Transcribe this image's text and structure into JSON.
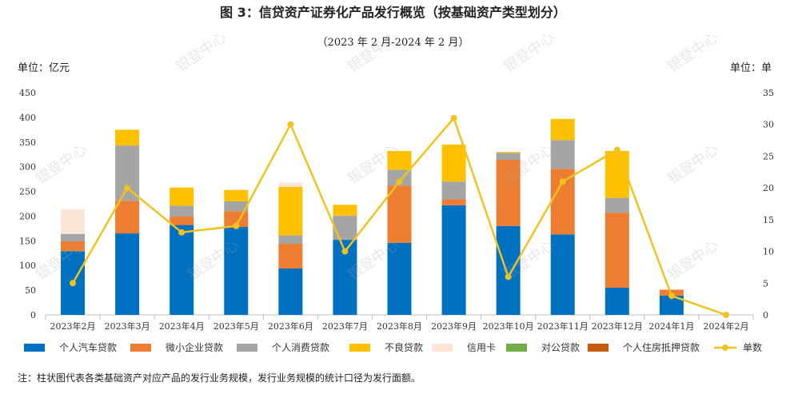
{
  "title": "图 3：信贷资产证券化产品发行概览（按基础资产类型划分）",
  "subtitle": "（2023 年 2 月-2024 年 2 月）",
  "unit_left": "单位：亿元",
  "unit_right": "单位：单",
  "note": "注：柱状图代表各类基础资产对应产品的发行业务规模，发行业务规模的统计口径为发行面额。",
  "watermark": "银登中心",
  "colors": {
    "个人汽车贷款": "#0070C0",
    "微小企业贷款": "#ED7D31",
    "个人消费贷款": "#A5A5A5",
    "不良贷款": "#FFC000",
    "信用卡": "#FCE4D6",
    "对公贷款": "#70AD47",
    "个人住房抵押贷款": "#C55A11",
    "line": "#F2C21E"
  },
  "chart_data": {
    "type": "bar",
    "stacked": true,
    "categories": [
      "2023年2月",
      "2023年3月",
      "2023年4月",
      "2023年5月",
      "2023年6月",
      "2023年7月",
      "2023年8月",
      "2023年9月",
      "2023年10月",
      "2023年11月",
      "2023年12月",
      "2024年1月",
      "2024年2月"
    ],
    "ylim": [
      0,
      450
    ],
    "yticks": [
      "0",
      "50",
      "100",
      "150",
      "200",
      "250",
      "300",
      "350",
      "400",
      "450"
    ],
    "y2lim": [
      0,
      35
    ],
    "y2ticks": [
      "0",
      "5",
      "10",
      "15",
      "20",
      "25",
      "30",
      "35"
    ],
    "series": [
      {
        "name": "个人汽车贷款",
        "values": [
          129,
          165,
          182,
          178,
          94,
          152,
          146,
          222,
          180,
          163,
          55,
          39,
          0
        ]
      },
      {
        "name": "微小企业贷款",
        "values": [
          20,
          66,
          17,
          32,
          50,
          0,
          116,
          12,
          134,
          133,
          152,
          12,
          0
        ]
      },
      {
        "name": "个人消费贷款",
        "values": [
          15,
          112,
          22,
          20,
          17,
          49,
          32,
          36,
          14,
          58,
          30,
          0,
          0
        ]
      },
      {
        "name": "不良贷款",
        "values": [
          0,
          32,
          37,
          23,
          98,
          22,
          38,
          75,
          2,
          43,
          95,
          0,
          0
        ]
      },
      {
        "name": "信用卡",
        "values": [
          50,
          0,
          0,
          0,
          9,
          0,
          0,
          0,
          0,
          0,
          0,
          0,
          0
        ]
      },
      {
        "name": "对公贷款",
        "values": [
          0,
          0,
          0,
          0,
          0,
          0,
          0,
          0,
          0,
          0,
          0,
          0,
          0
        ]
      },
      {
        "name": "个人住房抵押贷款",
        "values": [
          0,
          0,
          0,
          0,
          0,
          0,
          0,
          0,
          0,
          0,
          0,
          0,
          0
        ]
      }
    ],
    "line": {
      "name": "单数",
      "axis": "right",
      "values": [
        5,
        20,
        13,
        14,
        30,
        10,
        21,
        31,
        6,
        21,
        26,
        3,
        0
      ]
    },
    "legend": [
      "个人汽车贷款",
      "微小企业贷款",
      "个人消费贷款",
      "不良贷款",
      "信用卡",
      "对公贷款",
      "个人住房抵押贷款",
      "单数"
    ]
  }
}
